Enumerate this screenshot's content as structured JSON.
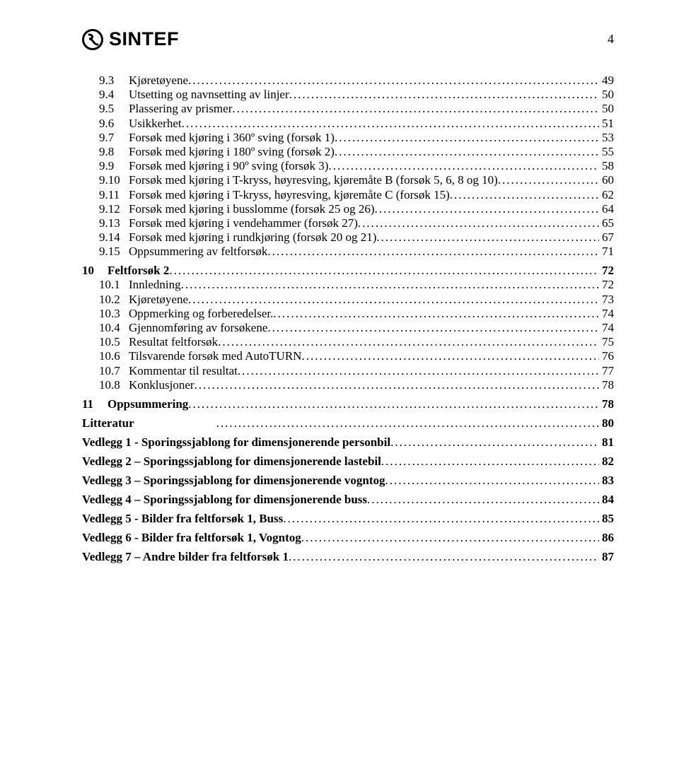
{
  "header": {
    "logo_text": "SINTEF",
    "page_number": "4"
  },
  "toc": [
    {
      "level": 2,
      "num": "9.3",
      "title": "Kjøretøyene",
      "page": "49"
    },
    {
      "level": 2,
      "num": "9.4",
      "title": "Utsetting og navnsetting av linjer",
      "page": "50"
    },
    {
      "level": 2,
      "num": "9.5",
      "title": "Plassering av prismer",
      "page": "50"
    },
    {
      "level": 2,
      "num": "9.6",
      "title": "Usikkerhet",
      "page": "51"
    },
    {
      "level": 2,
      "num": "9.7",
      "title": "Forsøk med kjøring i 360º sving (forsøk 1)",
      "page": "53"
    },
    {
      "level": 2,
      "num": "9.8",
      "title": "Forsøk med kjøring i 180º sving (forsøk 2)",
      "page": "55"
    },
    {
      "level": 2,
      "num": "9.9",
      "title": "Forsøk med kjøring i 90º sving (forsøk 3)",
      "page": "58"
    },
    {
      "level": 2,
      "num": "9.10",
      "title": "Forsøk med kjøring i T-kryss, høyresving, kjøremåte B (forsøk 5, 6, 8 og 10)",
      "page": "60"
    },
    {
      "level": 2,
      "num": "9.11",
      "title": "Forsøk med kjøring i T-kryss, høyresving, kjøremåte C (forsøk 15)",
      "page": "62"
    },
    {
      "level": 2,
      "num": "9.12",
      "title": "Forsøk med kjøring i busslomme (forsøk 25 og 26)",
      "page": "64"
    },
    {
      "level": 2,
      "num": "9.13",
      "title": "Forsøk med kjøring i vendehammer (forsøk 27)",
      "page": "65"
    },
    {
      "level": 2,
      "num": "9.14",
      "title": "Forsøk med kjøring i rundkjøring (forsøk 20 og 21)",
      "page": "67"
    },
    {
      "level": 2,
      "num": "9.15",
      "title": "Oppsummering av feltforsøk",
      "page": "71",
      "gap_after": true
    },
    {
      "level": 1,
      "num": "10",
      "title": "Feltforsøk 2",
      "page": "72"
    },
    {
      "level": 2,
      "num": "10.1",
      "title": "Innledning",
      "page": "72"
    },
    {
      "level": 2,
      "num": "10.2",
      "title": "Kjøretøyene",
      "page": "73"
    },
    {
      "level": 2,
      "num": "10.3",
      "title": "Oppmerking og forberedelser.",
      "page": "74"
    },
    {
      "level": 2,
      "num": "10.4",
      "title": "Gjennomføring av forsøkene",
      "page": "74"
    },
    {
      "level": 2,
      "num": "10.5",
      "title": "Resultat  feltforsøk",
      "page": "75"
    },
    {
      "level": 2,
      "num": "10.6",
      "title": "Tilsvarende forsøk med AutoTURN",
      "page": "76"
    },
    {
      "level": 2,
      "num": "10.7",
      "title": "Kommentar til resultat",
      "page": "77"
    },
    {
      "level": 2,
      "num": "10.8",
      "title": "Konklusjoner",
      "page": "78",
      "gap_after": true
    },
    {
      "level": 1,
      "num": "11",
      "title": "Oppsummering",
      "page": "78"
    },
    {
      "level": 0,
      "num": "",
      "title": "Litteratur",
      "page": "80",
      "title_pad": 116
    },
    {
      "level": 0,
      "num": "",
      "title": "Vedlegg 1  - Sporingssjablong for dimensjonerende personbil",
      "page": "81"
    },
    {
      "level": 0,
      "num": "",
      "title": "Vedlegg 2 – Sporingssjablong for dimensjonerende lastebil",
      "page": "82"
    },
    {
      "level": 0,
      "num": "",
      "title": "Vedlegg 3 – Sporingssjablong for dimensjonerende vogntog",
      "page": "83"
    },
    {
      "level": 0,
      "num": "",
      "title": "Vedlegg 4 – Sporingssjablong for dimensjonerende buss",
      "page": "84"
    },
    {
      "level": 0,
      "num": "",
      "title": "Vedlegg 5 - Bilder fra feltforsøk 1, Buss",
      "page": "85"
    },
    {
      "level": 0,
      "num": "",
      "title": "Vedlegg 6 - Bilder fra feltforsøk 1, Vogntog",
      "page": "86"
    },
    {
      "level": 0,
      "num": "",
      "title": "Vedlegg 7 – Andre bilder fra feltforsøk 1",
      "page": "87"
    }
  ]
}
